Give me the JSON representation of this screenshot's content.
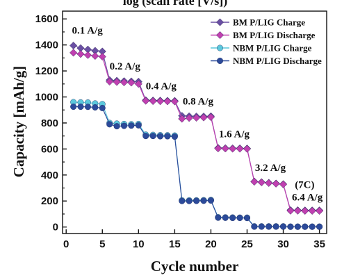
{
  "chart_data": {
    "type": "scatter",
    "top_fragment": "log (scan rate [V/s])",
    "xlabel": "Cycle number",
    "ylabel": "Capacity [mAh/g]",
    "xlim": [
      -0.5,
      36
    ],
    "ylim": [
      -50,
      1660
    ],
    "x_ticks": [
      0,
      5,
      10,
      15,
      20,
      25,
      30,
      35
    ],
    "y_ticks": [
      0,
      200,
      400,
      600,
      800,
      1000,
      1200,
      1400,
      1600
    ],
    "grid": false,
    "legend_position": "top-right",
    "series": [
      {
        "name": "BM P/LIG Charge",
        "color": "#6a4fa3",
        "marker": "diamond",
        "x": [
          1,
          2,
          3,
          4,
          5,
          6,
          7,
          8,
          9,
          10,
          11,
          12,
          13,
          14,
          15,
          16,
          17,
          18,
          19,
          20,
          21,
          22,
          23,
          24,
          25,
          26,
          27,
          28,
          29,
          30,
          31,
          32,
          33,
          34,
          35
        ],
        "y": [
          1395,
          1375,
          1365,
          1355,
          1350,
          1130,
          1125,
          1122,
          1120,
          1118,
          975,
          973,
          972,
          971,
          970,
          855,
          852,
          850,
          850,
          852,
          608,
          606,
          605,
          605,
          604,
          350,
          345,
          340,
          335,
          330,
          130,
          129,
          128,
          128,
          128
        ]
      },
      {
        "name": "BM P/LIG Discharge",
        "color": "#c040b0",
        "marker": "diamond",
        "x": [
          1,
          2,
          3,
          4,
          5,
          6,
          7,
          8,
          9,
          10,
          11,
          12,
          13,
          14,
          15,
          16,
          17,
          18,
          19,
          20,
          21,
          22,
          23,
          24,
          25,
          26,
          27,
          28,
          29,
          30,
          31,
          32,
          33,
          34,
          35
        ],
        "y": [
          1340,
          1330,
          1322,
          1315,
          1310,
          1118,
          1115,
          1112,
          1110,
          1100,
          970,
          968,
          967,
          966,
          965,
          832,
          838,
          840,
          842,
          845,
          604,
          603,
          602,
          602,
          601,
          348,
          343,
          338,
          333,
          328,
          125,
          125,
          124,
          124,
          124
        ]
      },
      {
        "name": "NBM P/LIG Charge",
        "color": "#5cc8dc",
        "marker": "circle",
        "x": [
          1,
          2,
          3,
          4,
          5,
          6,
          7,
          8,
          9,
          10,
          11,
          12,
          13,
          14,
          15,
          16,
          17,
          18,
          19,
          20,
          21,
          22,
          23,
          24,
          25,
          26,
          27,
          28,
          29,
          30,
          31,
          32,
          33,
          34,
          35
        ],
        "y": [
          960,
          958,
          957,
          950,
          945,
          800,
          795,
          792,
          790,
          792,
          710,
          708,
          706,
          705,
          703,
          205,
          205,
          205,
          206,
          208,
          75,
          74,
          73,
          72,
          72,
          5,
          5,
          5,
          5,
          5,
          3,
          3,
          3,
          3,
          3
        ]
      },
      {
        "name": "NBM P/LIG Discharge",
        "color": "#2c4a9a",
        "marker": "circle",
        "x": [
          1,
          2,
          3,
          4,
          5,
          6,
          7,
          8,
          9,
          10,
          11,
          12,
          13,
          14,
          15,
          16,
          17,
          18,
          19,
          20,
          21,
          22,
          23,
          24,
          25,
          26,
          27,
          28,
          29,
          30,
          31,
          32,
          33,
          34,
          35
        ],
        "y": [
          925,
          925,
          924,
          920,
          915,
          790,
          775,
          778,
          780,
          782,
          700,
          700,
          698,
          698,
          695,
          200,
          200,
          201,
          202,
          204,
          72,
          71,
          70,
          70,
          69,
          3,
          3,
          3,
          3,
          3,
          2,
          2,
          2,
          2,
          2
        ]
      }
    ],
    "annotations": [
      {
        "text": "0.1 A/g",
        "x": 0.8,
        "y": 1485
      },
      {
        "text": "0.2 A/g",
        "x": 6.0,
        "y": 1210
      },
      {
        "text": "0.4 A/g",
        "x": 11.0,
        "y": 1060
      },
      {
        "text": "0.8 A/g",
        "x": 16.1,
        "y": 940
      },
      {
        "text": "1.6 A/g",
        "x": 21.1,
        "y": 690
      },
      {
        "text": "3.2 A/g",
        "x": 26.1,
        "y": 430
      },
      {
        "text": "(7C)",
        "x": 31.6,
        "y": 300
      },
      {
        "text": "6.4 A/g",
        "x": 31.2,
        "y": 205
      }
    ]
  }
}
